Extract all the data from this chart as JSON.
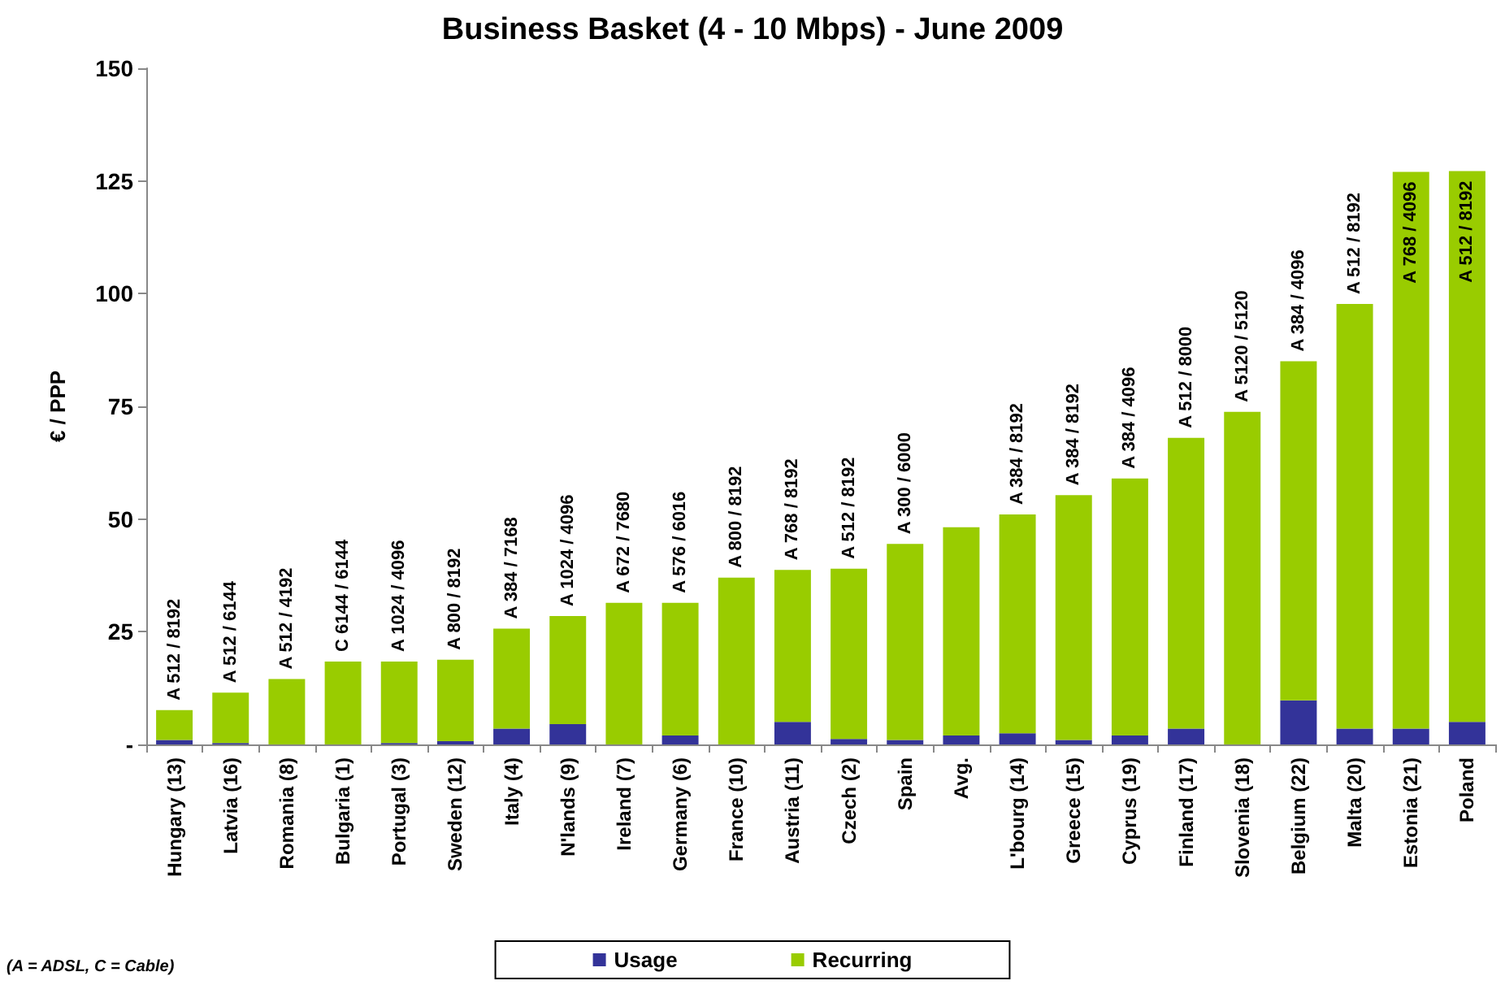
{
  "chart_data": {
    "type": "bar",
    "title": "Business Basket (4 - 10 Mbps) - June 2009",
    "ylabel": "€ / PPP",
    "categories": [
      "Hungary (13)",
      "Latvia (16)",
      "Romania (8)",
      "Bulgaria (1)",
      "Portugal (3)",
      "Sweden (12)",
      "Italy (4)",
      "N'lands (9)",
      "Ireland (7)",
      "Germany (6)",
      "France (10)",
      "Austria (11)",
      "Czech (2)",
      "Spain",
      "Avg.",
      "L'bourg (14)",
      "Greece (15)",
      "Cyprus (19)",
      "Finland (17)",
      "Slovenia (18)",
      "Belgium (22)",
      "Malta (20)",
      "Estonia (21)",
      "Poland"
    ],
    "stacked": true,
    "series": [
      {
        "name": "Usage",
        "color": "#333399",
        "values": [
          1,
          0.3,
          0,
          0,
          0.3,
          0.7,
          3.5,
          4.5,
          0,
          2,
          0,
          5,
          1.2,
          1,
          2,
          2.5,
          1,
          2,
          3.5,
          0,
          9.8,
          3.5,
          3.5,
          5
        ]
      },
      {
        "name": "Recurring",
        "color": "#99cc00",
        "values": [
          6.6,
          11.2,
          14.5,
          18.4,
          18.1,
          18.1,
          22.2,
          24,
          31.4,
          29.4,
          37,
          33.7,
          37.8,
          43.5,
          46.2,
          48.5,
          54.3,
          57,
          64.5,
          73.8,
          75.2,
          94.2,
          123.5,
          122.2
        ],
        "value_labels": [
          "A 512 / 8192",
          "A 512 / 6144",
          "A 512 / 4192",
          "C 6144 / 6144",
          "A 1024 / 4096",
          "A 800 / 8192",
          "A 384 / 7168",
          "A 1024 / 4096",
          "A 672 / 7680",
          "A 576 / 6016",
          "A 800 / 8192",
          "A 768 / 8192",
          "A 512 / 8192",
          "A 300 / 6000",
          null,
          "A 384 / 8192",
          "A 384 / 8192",
          "A 384 / 4096",
          "A 512 / 8000",
          "A 5120 / 5120",
          "A 384 / 4096",
          "A 512 / 8192",
          "A 768 / 4096",
          "A 512 / 8192"
        ]
      }
    ],
    "ylim": [
      0,
      150
    ],
    "yticks": [
      {
        "value": 0,
        "label": "-"
      },
      25,
      50,
      75,
      100,
      125,
      150
    ],
    "grid": false,
    "legend": "bottom",
    "annotations": [
      "(A = ADSL, C = Cable)"
    ]
  }
}
